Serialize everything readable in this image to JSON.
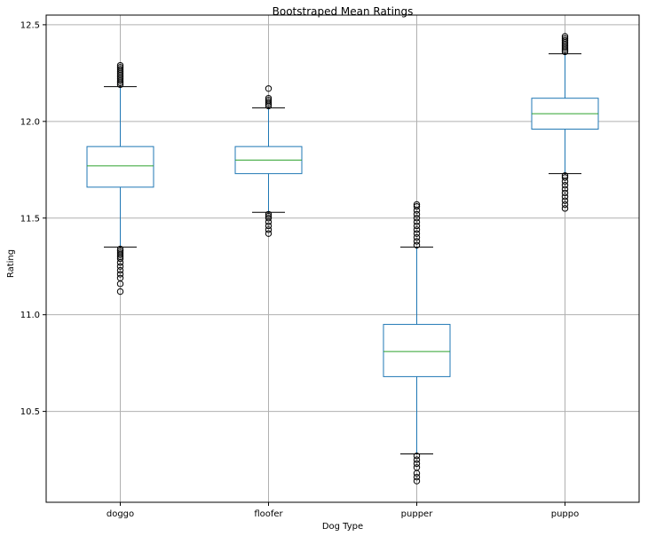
{
  "chart_data": {
    "type": "box",
    "title": "Bootstraped Mean Ratings",
    "xlabel": "Dog Type",
    "ylabel": "Rating",
    "ylim": [
      10.03,
      12.55
    ],
    "yticks": [
      10.5,
      11.0,
      11.5,
      12.0,
      12.5
    ],
    "ytick_labels": [
      "10.5",
      "11.0",
      "11.5",
      "12.0",
      "12.5"
    ],
    "grid": true,
    "colors": {
      "box": "#1f77b4",
      "median": "#2ca02c",
      "grid": "#b0b0b0",
      "whisker_cap": "#000000",
      "flier": "#000000"
    },
    "categories": [
      "doggo",
      "floofer",
      "pupper",
      "puppo"
    ],
    "boxes": [
      {
        "category": "doggo",
        "whisker_low": 11.35,
        "q1": 11.66,
        "median": 11.77,
        "q3": 11.87,
        "whisker_high": 12.18,
        "fliers": [
          11.12,
          11.16,
          11.19,
          11.21,
          11.23,
          11.25,
          11.27,
          11.29,
          11.3,
          11.31,
          11.32,
          11.33,
          11.34,
          12.19,
          12.2,
          12.21,
          12.22,
          12.23,
          12.24,
          12.25,
          12.26,
          12.27,
          12.28,
          12.29
        ]
      },
      {
        "category": "floofer",
        "whisker_low": 11.53,
        "q1": 11.73,
        "median": 11.8,
        "q3": 11.87,
        "whisker_high": 12.07,
        "fliers": [
          11.42,
          11.44,
          11.46,
          11.48,
          11.5,
          11.51,
          11.52,
          12.08,
          12.09,
          12.1,
          12.11,
          12.12,
          12.17
        ]
      },
      {
        "category": "pupper",
        "whisker_low": 10.28,
        "q1": 10.68,
        "median": 10.81,
        "q3": 10.95,
        "whisker_high": 11.35,
        "fliers": [
          10.14,
          10.16,
          10.18,
          10.21,
          10.23,
          10.25,
          10.27,
          11.36,
          11.38,
          11.4,
          11.42,
          11.44,
          11.46,
          11.48,
          11.5,
          11.52,
          11.54,
          11.56,
          11.57
        ]
      },
      {
        "category": "puppo",
        "whisker_low": 11.73,
        "q1": 11.96,
        "median": 12.04,
        "q3": 12.12,
        "whisker_high": 12.35,
        "fliers": [
          11.55,
          11.57,
          11.59,
          11.61,
          11.63,
          11.65,
          11.67,
          11.69,
          11.71,
          11.72,
          12.36,
          12.37,
          12.38,
          12.39,
          12.4,
          12.41,
          12.42,
          12.43,
          12.44
        ]
      }
    ]
  }
}
